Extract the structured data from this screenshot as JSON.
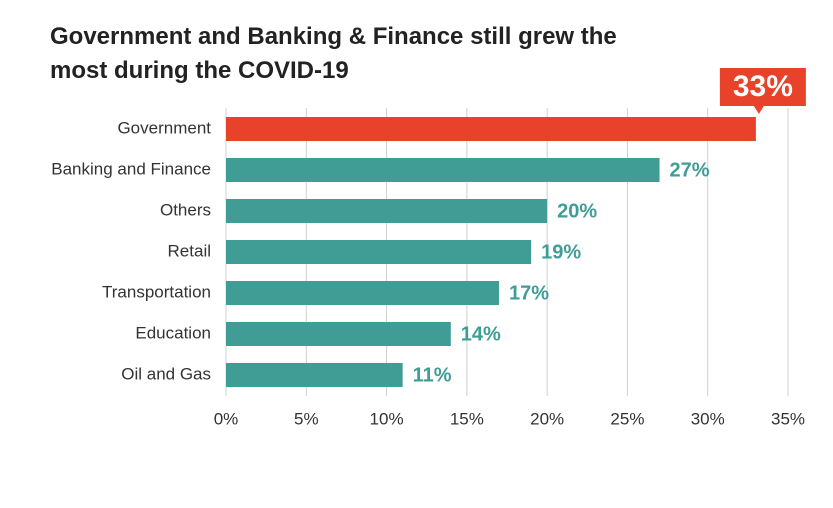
{
  "chart_data": {
    "type": "barh",
    "title": "Government and Banking & Finance still grew the most during the COVID-19",
    "categories": [
      "Government",
      "Banking and Finance",
      "Others",
      "Retail",
      "Transportation",
      "Education",
      "Oil and Gas"
    ],
    "values": [
      33,
      27,
      20,
      19,
      17,
      14,
      11
    ],
    "value_labels": [
      "33%",
      "27%",
      "20%",
      "19%",
      "17%",
      "14%",
      "11%"
    ],
    "colors": [
      "#e8432a",
      "#3f9d96",
      "#3f9d96",
      "#3f9d96",
      "#3f9d96",
      "#3f9d96",
      "#3f9d96"
    ],
    "xlim": [
      0,
      35
    ],
    "xticks": [
      {
        "value": 0,
        "label": "0%"
      },
      {
        "value": 5,
        "label": "5%"
      },
      {
        "value": 10,
        "label": "10%"
      },
      {
        "value": 15,
        "label": "15%"
      },
      {
        "value": 20,
        "label": "20%"
      },
      {
        "value": 25,
        "label": "25%"
      },
      {
        "value": 30,
        "label": "30%"
      },
      {
        "value": 35,
        "label": "35%"
      }
    ],
    "grid": true
  }
}
